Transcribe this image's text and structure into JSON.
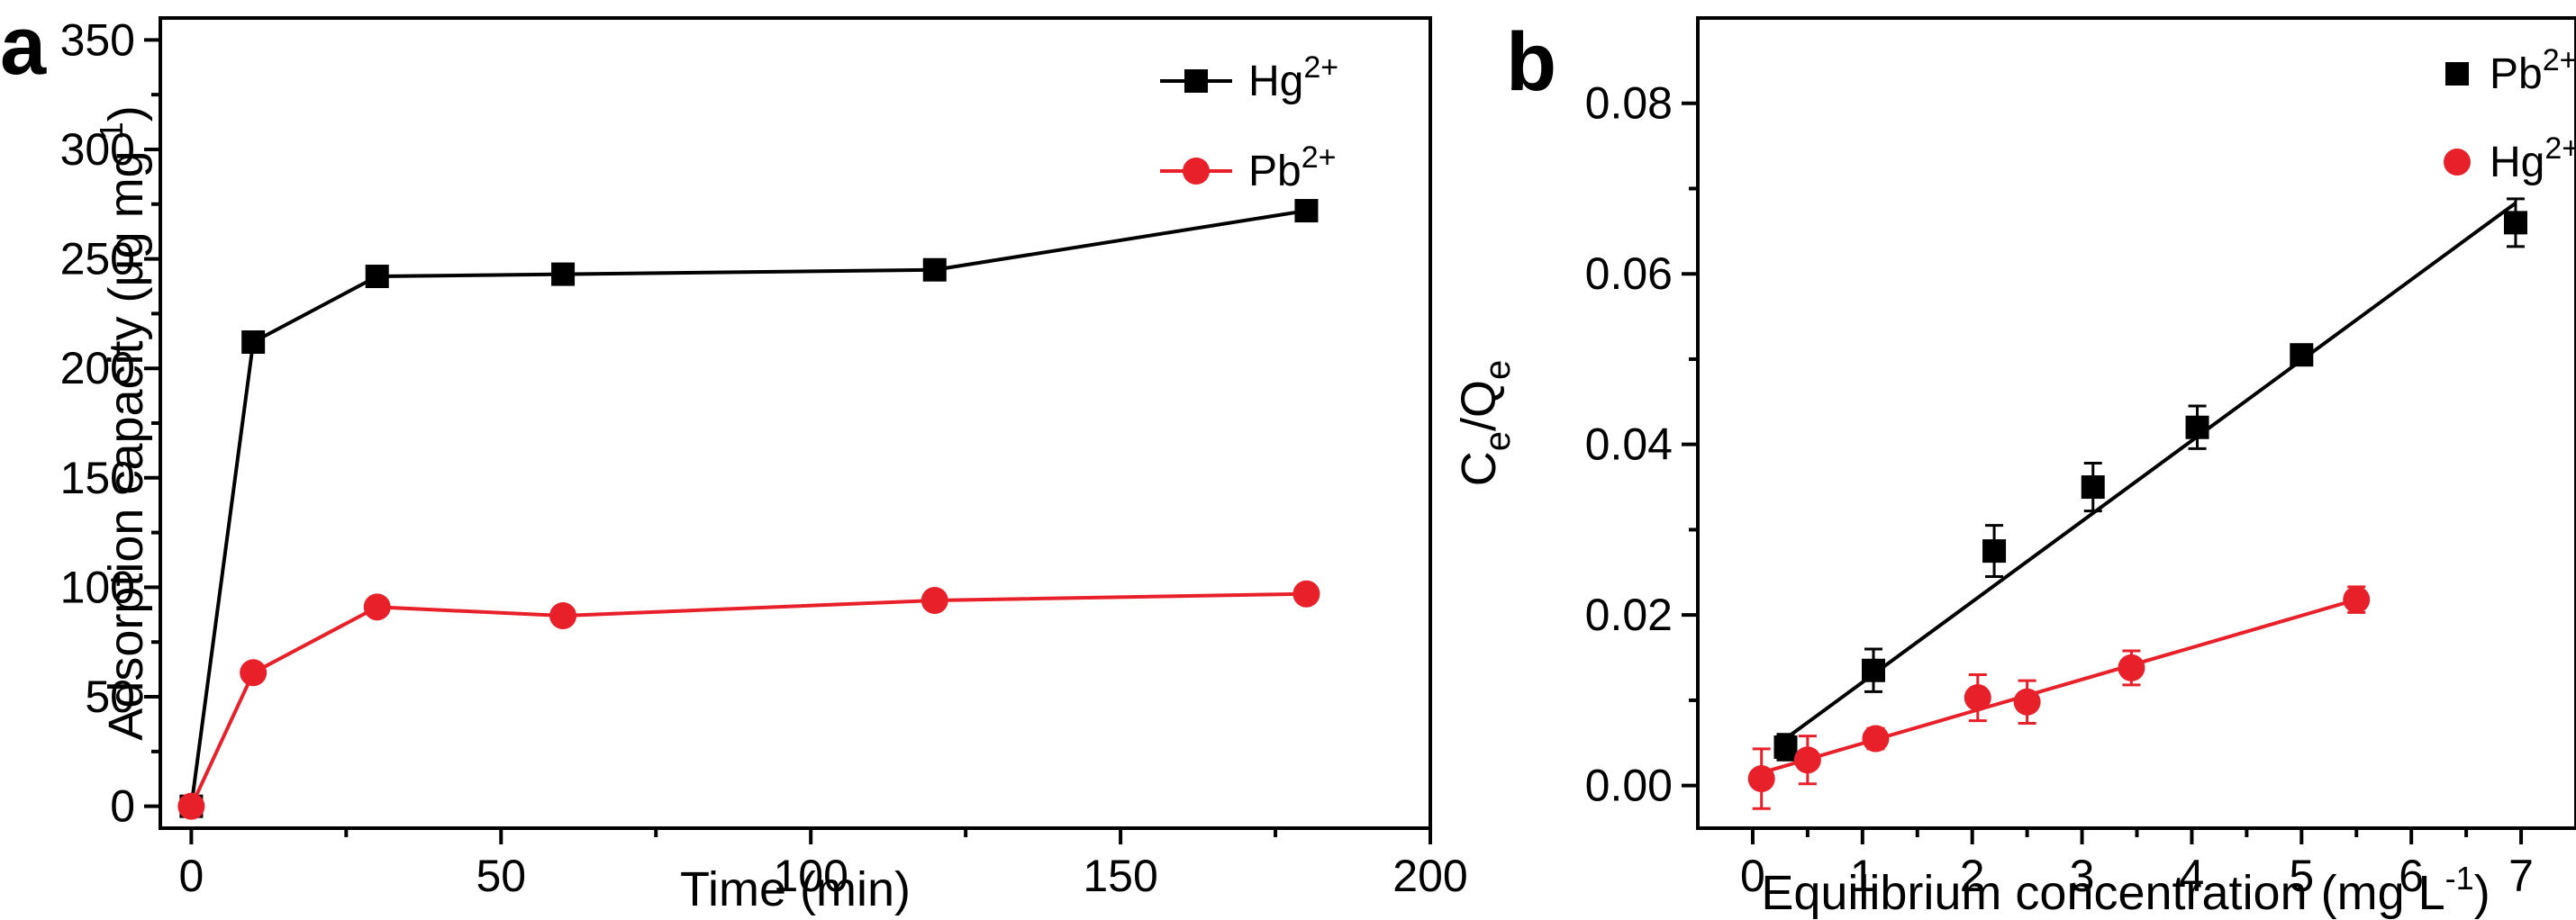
{
  "chart_data": [
    {
      "type": "line",
      "panel_label": "a",
      "xlabel": "Time (min)",
      "ylabel": "Adsorption capacity (μg mg",
      "ylabel_sup": "-1",
      "ylabel_close": ")",
      "xlim": [
        -5,
        200
      ],
      "ylim": [
        -10,
        360
      ],
      "xticks": [
        0,
        50,
        100,
        150,
        200
      ],
      "yticks": [
        0,
        50,
        100,
        150,
        200,
        250,
        300,
        350
      ],
      "legend_position": "top-right",
      "series": [
        {
          "name": "Hg",
          "name_sup": "2+",
          "color": "#000000",
          "marker": "square",
          "x": [
            0,
            10,
            30,
            60,
            120,
            180
          ],
          "y": [
            0,
            212,
            242,
            243,
            245,
            272
          ]
        },
        {
          "name": "Pb",
          "name_sup": "2+",
          "color": "#e8202a",
          "marker": "circle",
          "x": [
            0,
            10,
            30,
            60,
            120,
            180
          ],
          "y": [
            0,
            61,
            91,
            87,
            94,
            97
          ]
        }
      ]
    },
    {
      "type": "scatter",
      "panel_label": "b",
      "xlabel": "Equilibrium concentration (mg L",
      "xlabel_sup": "-1",
      "xlabel_close": ")",
      "ylabel_parts": [
        "C",
        "e",
        "/Q",
        "e"
      ],
      "xlim": [
        -0.5,
        7.5
      ],
      "ylim": [
        -0.005,
        0.09
      ],
      "xticks": [
        0,
        1,
        2,
        3,
        4,
        5,
        6,
        7
      ],
      "yticks": [
        0.0,
        0.02,
        0.04,
        0.06,
        0.08
      ],
      "ytick_labels": [
        "0.00",
        "0.02",
        "0.04",
        "0.06",
        "0.08"
      ],
      "legend_position": "top-right",
      "series": [
        {
          "name": "Pb",
          "name_sup": "2+",
          "color": "#000000",
          "marker": "square",
          "x": [
            0.3,
            1.1,
            2.2,
            3.1,
            4.05,
            5.0,
            6.95
          ],
          "y": [
            0.0045,
            0.0135,
            0.0275,
            0.035,
            0.042,
            0.0505,
            0.066
          ],
          "yerr": [
            0.0015,
            0.0025,
            0.003,
            0.0028,
            0.0025,
            0.001,
            0.0028
          ],
          "fit": {
            "x": [
              0.3,
              6.95
            ],
            "y": [
              0.0055,
              0.0683
            ]
          }
        },
        {
          "name": "Hg",
          "name_sup": "2+",
          "color": "#e8202a",
          "marker": "circle",
          "x": [
            0.08,
            0.5,
            1.12,
            2.05,
            2.5,
            3.45,
            5.5
          ],
          "y": [
            0.0008,
            0.003,
            0.0055,
            0.0103,
            0.0098,
            0.0138,
            0.0218
          ],
          "yerr": [
            0.0035,
            0.0028,
            0.0012,
            0.0027,
            0.0025,
            0.002,
            0.0015
          ],
          "fit": {
            "x": [
              0.08,
              5.5
            ],
            "y": [
              0.0015,
              0.0218
            ]
          }
        }
      ]
    }
  ]
}
